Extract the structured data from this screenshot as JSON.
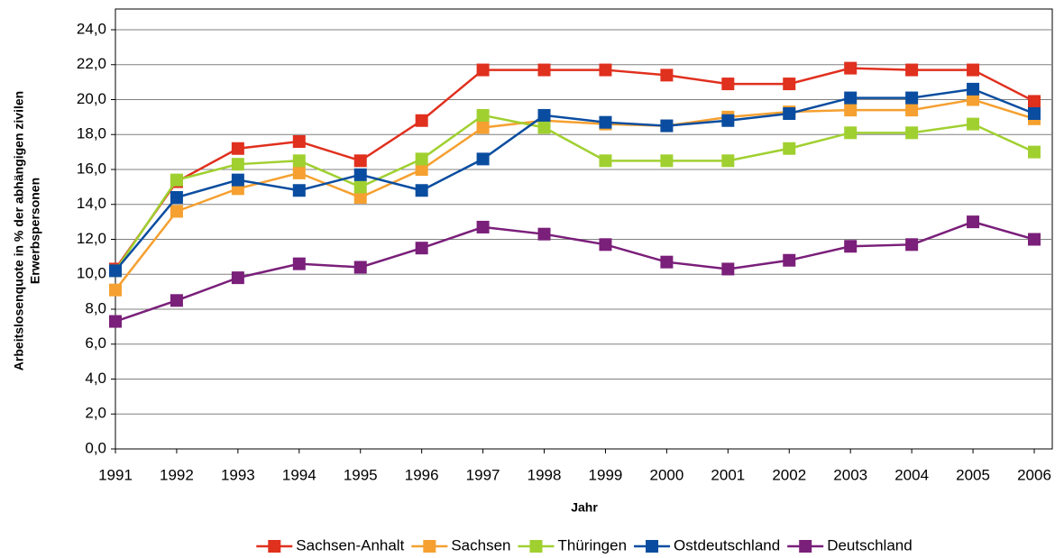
{
  "chart_data": {
    "type": "line",
    "xlabel": "Jahr",
    "ylabel": [
      "Arbeitslosenquote in % der abhängigen zivilen",
      "Erwerbspersonen"
    ],
    "x": [
      1991,
      1992,
      1993,
      1994,
      1995,
      1996,
      1997,
      1998,
      1999,
      2000,
      2001,
      2002,
      2003,
      2004,
      2005,
      2006
    ],
    "xlim": [
      1991,
      2006
    ],
    "xticks": [
      1991,
      1992,
      1993,
      1994,
      1995,
      1996,
      1997,
      1998,
      1999,
      2000,
      2001,
      2002,
      2003,
      2004,
      2005,
      2006
    ],
    "ylim": [
      0,
      24
    ],
    "yticks": [
      {
        "value": 0,
        "label": "0,0"
      },
      {
        "value": 2,
        "label": "2,0"
      },
      {
        "value": 4,
        "label": "4,0"
      },
      {
        "value": 6,
        "label": "6,0"
      },
      {
        "value": 8,
        "label": "8,0"
      },
      {
        "value": 10,
        "label": "10,0"
      },
      {
        "value": 12,
        "label": "12,0"
      },
      {
        "value": 14,
        "label": "14,0"
      },
      {
        "value": 16,
        "label": "16,0"
      },
      {
        "value": 18,
        "label": "18,0"
      },
      {
        "value": 20,
        "label": "20,0"
      },
      {
        "value": 22,
        "label": "22,0"
      },
      {
        "value": 24,
        "label": "24,0"
      }
    ],
    "grid": true,
    "legend": "bottom",
    "series": [
      {
        "name": "Sachsen-Anhalt",
        "color": "#e0301e",
        "values": [
          10.3,
          15.3,
          17.2,
          17.6,
          16.5,
          18.8,
          21.7,
          21.7,
          21.7,
          21.4,
          20.9,
          20.9,
          21.8,
          21.7,
          21.7,
          19.9
        ]
      },
      {
        "name": "Sachsen",
        "color": "#f5a030",
        "values": [
          9.1,
          13.6,
          14.9,
          15.8,
          14.4,
          16.0,
          18.4,
          18.8,
          18.6,
          18.5,
          19.0,
          19.3,
          19.4,
          19.4,
          20.0,
          18.9
        ]
      },
      {
        "name": "Thüringen",
        "color": "#a0d030",
        "values": [
          10.2,
          15.4,
          16.3,
          16.5,
          15.0,
          16.6,
          19.1,
          18.4,
          16.5,
          16.5,
          16.5,
          17.2,
          18.1,
          18.1,
          18.6,
          17.0
        ]
      },
      {
        "name": "Ostdeutschland",
        "color": "#0a4da0",
        "values": [
          10.2,
          14.4,
          15.4,
          14.8,
          15.7,
          14.8,
          16.6,
          19.1,
          18.7,
          18.5,
          18.8,
          19.2,
          20.1,
          20.1,
          20.6,
          19.2
        ]
      },
      {
        "name": "Deutschland",
        "color": "#7a1f7a",
        "values": [
          7.3,
          8.5,
          9.8,
          10.6,
          10.4,
          11.5,
          12.7,
          12.3,
          11.7,
          10.7,
          10.3,
          10.8,
          11.6,
          11.7,
          13.0,
          12.0
        ]
      }
    ]
  }
}
